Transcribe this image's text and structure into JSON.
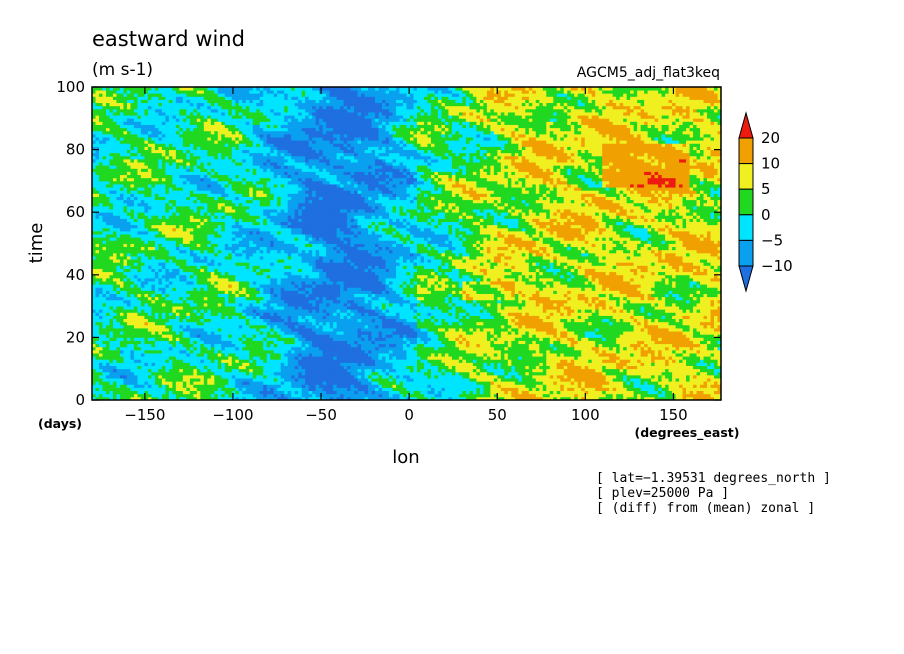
{
  "chart_data": {
    "type": "heatmap",
    "title": "eastward wind",
    "units": "(m s-1)",
    "dataset": "AGCM5_adj_flat3keq",
    "xlabel": "lon",
    "xunits": "(degrees_east)",
    "ylabel": "time",
    "yunits": "(days)",
    "xlim": [
      -180,
      177
    ],
    "ylim": [
      0,
      100
    ],
    "xticks": [
      -150,
      -100,
      -50,
      0,
      50,
      100,
      150
    ],
    "yticks": [
      0,
      20,
      40,
      60,
      80,
      100
    ],
    "colorbar": {
      "levels": [
        -10,
        -5,
        0,
        5,
        10,
        20
      ],
      "labels": [
        "20",
        "10",
        "5",
        "0",
        "−5",
        "−10"
      ],
      "colors": [
        "#1f6fe0",
        "#0aa0f0",
        "#00e5ff",
        "#20d820",
        "#f0f020",
        "#f0a000",
        "#ee1a10"
      ]
    },
    "field_description_regions": [
      {
        "lon_range": [
          -100,
          0
        ],
        "time_range": [
          0,
          100
        ],
        "sign": "negative"
      },
      {
        "lon_range": [
          50,
          177
        ],
        "time_range": [
          0,
          100
        ],
        "sign": "positive"
      }
    ],
    "notes": [
      "[ lat=−1.39531 degrees_north ]",
      "[ plev=25000 Pa ]",
      "[ (diff) from (mean) zonal ]"
    ],
    "grid": false
  }
}
